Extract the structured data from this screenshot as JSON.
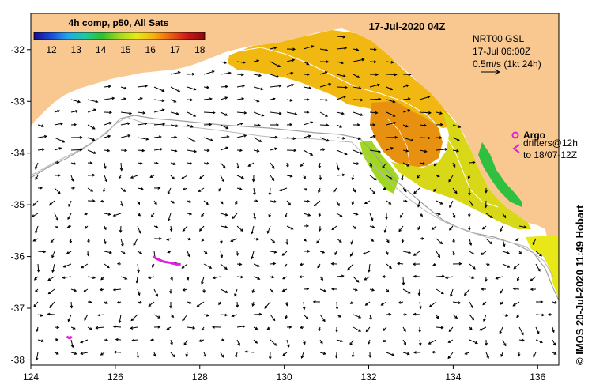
{
  "map": {
    "title_time": "17-Jul-2020 04Z",
    "colorbar": {
      "title": "4h comp, p50, All Sats",
      "ticks": [
        "12",
        "13",
        "14",
        "15",
        "16",
        "17",
        "18"
      ],
      "colors": [
        "#1a0a8c",
        "#1a4ad8",
        "#22a8e8",
        "#20c8a0",
        "#30c030",
        "#a0d820",
        "#e8e818",
        "#f8b010",
        "#e86010",
        "#c81818",
        "#8c0a0a"
      ]
    },
    "current_legend": {
      "line1": "NRT00 GSL",
      "line2": "17-Jul 06:00Z",
      "line3": "0.5m/s (1kt 24h)"
    },
    "argo_legend": {
      "argo_label": "Argo",
      "drifters_line1": "drifters@12h",
      "drifters_line2": "to 18/07-12Z",
      "argo_color": "#e020e0"
    },
    "x_axis": {
      "ticks": [
        "124",
        "126",
        "128",
        "130",
        "132",
        "134",
        "136"
      ],
      "range": [
        124,
        136.5
      ]
    },
    "y_axis": {
      "ticks": [
        "-32",
        "-33",
        "-34",
        "-35",
        "-36",
        "-37",
        "-38"
      ],
      "range": [
        -38.1,
        -31.3
      ]
    },
    "credit": "© IMOS 20-Jul-2020 11:49 Hobart",
    "land_color": "#f8c890",
    "argo_positions": [
      {
        "lon": 135.45,
        "lat": -33.75
      }
    ],
    "drifter_tracks": [
      [
        [
          126.9,
          -36.0
        ],
        [
          127.0,
          -36.05
        ],
        [
          127.15,
          -36.1
        ],
        [
          127.3,
          -36.12
        ],
        [
          127.45,
          -36.15
        ],
        [
          127.55,
          -36.15
        ]
      ],
      [
        [
          124.85,
          -37.55
        ],
        [
          124.92,
          -37.58
        ],
        [
          124.97,
          -37.55
        ]
      ]
    ]
  }
}
